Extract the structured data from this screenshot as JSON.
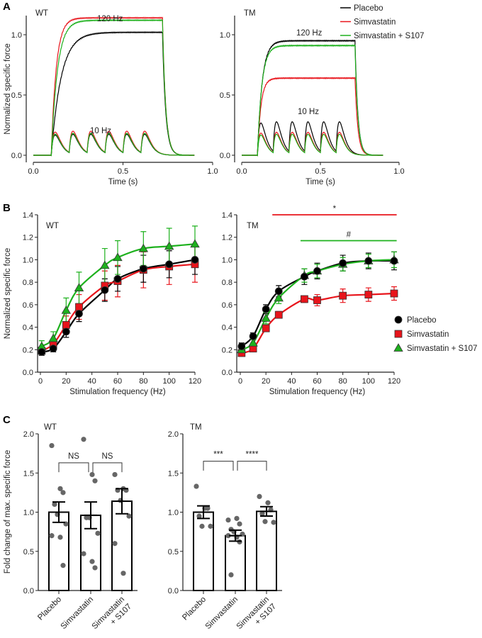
{
  "panel_letters": [
    "A",
    "B",
    "C"
  ],
  "chart_data": [
    {
      "panel": "A",
      "group": "WT",
      "type": "line",
      "xlabel": "Time (s)",
      "ylabel": "Normalized specific force",
      "xticks": [
        "0.0",
        "0.5",
        "1.0"
      ],
      "yticks": [
        "0.0",
        "0.5",
        "1.0"
      ],
      "xlim": [
        0,
        1.0
      ],
      "ylim": [
        0,
        1.2
      ],
      "annotations": [
        "120 Hz",
        "10 Hz"
      ],
      "series": [
        {
          "name": "Placebo",
          "color": "#000000",
          "plateau_120Hz": 1.02,
          "peak_10Hz": 0.2
        },
        {
          "name": "Simvastatin",
          "color": "#e8141b",
          "plateau_120Hz": 1.14,
          "peak_10Hz": 0.23
        },
        {
          "name": "Simvastatin + S107",
          "color": "#1db11d",
          "plateau_120Hz": 1.12,
          "peak_10Hz": 0.21
        }
      ]
    },
    {
      "panel": "A",
      "group": "TM",
      "type": "line",
      "xlabel": "Time (s)",
      "xticks": [
        "0.0",
        "0.5",
        "1.0"
      ],
      "yticks": [
        "0.0",
        "0.5",
        "1.0"
      ],
      "xlim": [
        0,
        1.0
      ],
      "ylim": [
        0,
        1.2
      ],
      "annotations": [
        "120 Hz",
        "10 Hz"
      ],
      "legend": [
        "Placebo",
        "Simvastatin",
        "Simvastatin + S107"
      ],
      "series": [
        {
          "name": "Placebo",
          "color": "#000000",
          "plateau_120Hz": 0.95,
          "peak_10Hz": 0.32
        },
        {
          "name": "Simvastatin",
          "color": "#e8141b",
          "plateau_120Hz": 0.64,
          "peak_10Hz": 0.22
        },
        {
          "name": "Simvastatin + S107",
          "color": "#1db11d",
          "plateau_120Hz": 0.91,
          "peak_10Hz": 0.2
        }
      ]
    },
    {
      "panel": "B",
      "group": "WT",
      "type": "scatter",
      "xlabel": "Stimulation frequency (Hz)",
      "ylabel": "Normalized specific force",
      "xticks": [
        "0",
        "20",
        "40",
        "60",
        "80",
        "100",
        "120"
      ],
      "yticks": [
        "0.0",
        "0.2",
        "0.4",
        "0.6",
        "0.8",
        "1.0",
        "1.2",
        "1.4"
      ],
      "xlim": [
        0,
        120
      ],
      "ylim": [
        0,
        1.4
      ],
      "x": [
        1,
        10,
        20,
        30,
        50,
        60,
        80,
        100,
        120
      ],
      "series": [
        {
          "name": "Placebo",
          "marker": "circle",
          "color": "#000000",
          "values": [
            0.18,
            0.21,
            0.36,
            0.52,
            0.73,
            0.83,
            0.92,
            0.96,
            1.0
          ],
          "errors": [
            0.03,
            0.03,
            0.05,
            0.07,
            0.1,
            0.11,
            0.12,
            0.12,
            0.13
          ]
        },
        {
          "name": "Simvastatin",
          "marker": "square",
          "color": "#e8141b",
          "values": [
            0.19,
            0.25,
            0.42,
            0.58,
            0.77,
            0.81,
            0.91,
            0.94,
            0.96
          ],
          "errors": [
            0.02,
            0.04,
            0.08,
            0.11,
            0.13,
            0.14,
            0.16,
            0.16,
            0.16
          ]
        },
        {
          "name": "Simvastatin + S107",
          "marker": "triangle",
          "color": "#1db11d",
          "values": [
            0.23,
            0.3,
            0.55,
            0.75,
            0.95,
            1.02,
            1.1,
            1.12,
            1.14
          ],
          "errors": [
            0.05,
            0.06,
            0.11,
            0.14,
            0.15,
            0.15,
            0.15,
            0.16,
            0.16
          ]
        }
      ]
    },
    {
      "panel": "B",
      "group": "TM",
      "type": "scatter",
      "xlabel": "Stimulation frequency (Hz)",
      "xticks": [
        "0",
        "20",
        "40",
        "60",
        "80",
        "100",
        "120"
      ],
      "yticks": [
        "0.0",
        "0.2",
        "0.4",
        "0.6",
        "0.8",
        "1.0",
        "1.2",
        "1.4"
      ],
      "xlim": [
        0,
        120
      ],
      "ylim": [
        0,
        1.4
      ],
      "x": [
        1,
        10,
        20,
        30,
        50,
        60,
        80,
        100,
        120
      ],
      "legend": [
        "Placebo",
        "Simvastatin",
        "Simvastatin + S107"
      ],
      "significance": [
        {
          "label": "*",
          "color": "#e8141b",
          "from": 25,
          "to": 122,
          "y": 1.4
        },
        {
          "label": "#",
          "color": "#1db11d",
          "from": 47,
          "to": 122,
          "y": 1.17
        }
      ],
      "series": [
        {
          "name": "Placebo",
          "marker": "circle",
          "color": "#000000",
          "values": [
            0.23,
            0.32,
            0.56,
            0.72,
            0.85,
            0.9,
            0.97,
            0.99,
            0.99
          ],
          "errors": [
            0.03,
            0.03,
            0.04,
            0.05,
            0.07,
            0.07,
            0.07,
            0.07,
            0.08
          ]
        },
        {
          "name": "Simvastatin",
          "marker": "square",
          "color": "#e8141b",
          "values": [
            0.17,
            0.21,
            0.39,
            0.51,
            0.65,
            0.64,
            0.68,
            0.69,
            0.7
          ],
          "errors": [
            0.02,
            0.02,
            0.03,
            0.03,
            0.03,
            0.05,
            0.06,
            0.06,
            0.06
          ]
        },
        {
          "name": "Simvastatin + S107",
          "marker": "triangle",
          "color": "#1db11d",
          "values": [
            0.2,
            0.26,
            0.48,
            0.66,
            0.86,
            0.9,
            0.96,
            0.99,
            1.0
          ],
          "errors": [
            0.03,
            0.03,
            0.05,
            0.05,
            0.06,
            0.06,
            0.06,
            0.06,
            0.07
          ]
        }
      ]
    },
    {
      "panel": "C",
      "group": "WT",
      "type": "bar",
      "ylabel": "Fold change of max. specific force",
      "yticks": [
        "0.0",
        "0.5",
        "1.0",
        "1.5",
        "2.0"
      ],
      "ylim": [
        0,
        2.0
      ],
      "category_lines": [
        [
          "Placebo"
        ],
        [
          "Simvastatin"
        ],
        [
          "Simvastatin",
          "+ S107"
        ]
      ],
      "values": [
        1.0,
        0.96,
        1.14
      ],
      "errors": [
        0.13,
        0.17,
        0.16
      ],
      "points": [
        [
          1.85,
          1.3,
          1.25,
          1.1,
          0.97,
          0.85,
          0.7,
          0.68,
          0.32
        ],
        [
          1.93,
          1.48,
          1.4,
          0.93,
          0.93,
          0.73,
          0.47,
          0.37,
          0.29
        ],
        [
          1.48,
          1.3,
          1.28,
          1.28,
          1.15,
          0.95,
          0.6,
          0.22
        ]
      ],
      "comparisons": [
        {
          "from": 0,
          "to": 1,
          "label": "NS",
          "y": 1.63
        },
        {
          "from": 1,
          "to": 2,
          "label": "NS",
          "y": 1.63
        }
      ]
    },
    {
      "panel": "C",
      "group": "TM",
      "type": "bar",
      "yticks": [
        "0.0",
        "0.5",
        "1.0",
        "1.5",
        "2.0"
      ],
      "ylim": [
        0,
        2.0
      ],
      "category_lines": [
        [
          "Placebo"
        ],
        [
          "Simvastatin"
        ],
        [
          "Simvastatin",
          "+ S107"
        ]
      ],
      "values": [
        1.0,
        0.7,
        1.01
      ],
      "errors": [
        0.08,
        0.07,
        0.06
      ],
      "points": [
        [
          1.33,
          1.05,
          1.05,
          0.95,
          0.82,
          0.82
        ],
        [
          0.9,
          0.92,
          0.85,
          0.78,
          0.75,
          0.72,
          0.7,
          0.68,
          0.62,
          0.2
        ],
        [
          1.2,
          1.12,
          1.03,
          0.98,
          0.88,
          0.87
        ]
      ],
      "comparisons": [
        {
          "from": 0,
          "to": 1,
          "label": "***",
          "y": 1.65
        },
        {
          "from": 1,
          "to": 2,
          "label": "****",
          "y": 1.65
        }
      ]
    }
  ]
}
